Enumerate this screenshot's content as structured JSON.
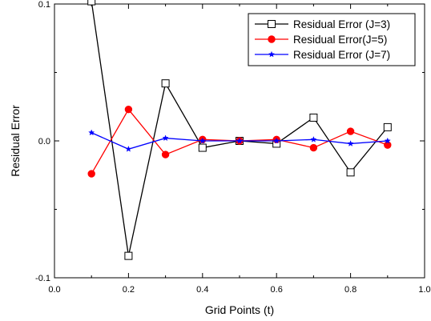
{
  "chart_data": {
    "type": "line",
    "title": "",
    "xlabel": "Grid Points (t)",
    "ylabel": "Residual Error",
    "xlim": [
      0.0,
      1.0
    ],
    "ylim": [
      -0.1,
      0.1
    ],
    "x_ticks": [
      0.0,
      0.2,
      0.4,
      0.6,
      0.8,
      1.0
    ],
    "x_tick_labels": [
      "0.0",
      "0.2",
      "0.4",
      "0.6",
      "0.8",
      "1.0"
    ],
    "y_ticks": [
      -0.1,
      0.0,
      0.1
    ],
    "y_tick_labels": [
      "-0.1",
      "0.0",
      "0.1"
    ],
    "grid": false,
    "legend_position": "top-right",
    "x": [
      0.1,
      0.2,
      0.3,
      0.4,
      0.5,
      0.6,
      0.7,
      0.8,
      0.9
    ],
    "series": [
      {
        "name": "Residual Error (J=3)",
        "color": "#000000",
        "marker": "open-square",
        "values": [
          0.102,
          -0.084,
          0.042,
          -0.005,
          0.0,
          -0.002,
          0.017,
          -0.023,
          0.01
        ]
      },
      {
        "name": "Residual Error(J=5)",
        "color": "#ff0000",
        "marker": "filled-circle",
        "values": [
          -0.024,
          0.023,
          -0.01,
          0.001,
          0.0,
          0.001,
          -0.005,
          0.007,
          -0.003
        ]
      },
      {
        "name": "Residual Error (J=7)",
        "color": "#0000ff",
        "marker": "star",
        "values": [
          0.006,
          -0.006,
          0.002,
          0.0,
          0.0,
          0.0,
          0.001,
          -0.002,
          0.0
        ]
      }
    ]
  }
}
